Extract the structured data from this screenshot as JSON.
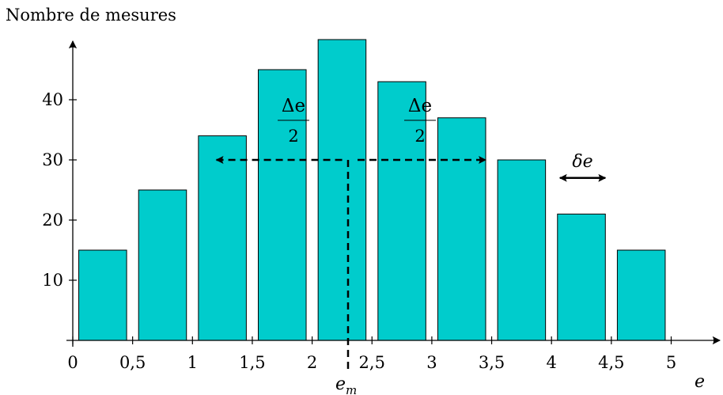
{
  "chart_data": {
    "type": "bar",
    "ylabel": "Nombre de mesures",
    "xlabel": "e",
    "bar_color": "#00cccc",
    "bar_stroke": "#000000",
    "bar_width": 0.4,
    "x_centers": [
      0.25,
      0.75,
      1.25,
      1.75,
      2.25,
      2.75,
      3.25,
      3.75,
      4.25,
      4.75
    ],
    "values": [
      15,
      25,
      34,
      45,
      50,
      43,
      37,
      30,
      21,
      15
    ],
    "xlim": [
      0,
      5.4
    ],
    "ylim": [
      0,
      50
    ],
    "x_ticks": [
      {
        "v": 0,
        "label": "0"
      },
      {
        "v": 0.5,
        "label": "0,5"
      },
      {
        "v": 1,
        "label": "1"
      },
      {
        "v": 1.5,
        "label": "1,5"
      },
      {
        "v": 2,
        "label": "2"
      },
      {
        "v": 2.5,
        "label": "2,5"
      },
      {
        "v": 3,
        "label": "3"
      },
      {
        "v": 3.5,
        "label": "3,5"
      },
      {
        "v": 4,
        "label": "4"
      },
      {
        "v": 4.5,
        "label": "4,5"
      },
      {
        "v": 5,
        "label": "5"
      }
    ],
    "y_ticks": [
      {
        "v": 10,
        "label": "10"
      },
      {
        "v": 20,
        "label": "20"
      },
      {
        "v": 30,
        "label": "30"
      },
      {
        "v": 40,
        "label": "40"
      }
    ],
    "mean": {
      "x": 2.3,
      "label": "e",
      "label_sub": "m"
    },
    "spread_arrows": {
      "y": 30,
      "left_from": 1.2,
      "right_to": 3.45,
      "numerator": "Δe",
      "denominator": "2"
    },
    "bin_width": {
      "from": 4.07,
      "to": 4.45,
      "y": 27,
      "label": "δe"
    }
  }
}
